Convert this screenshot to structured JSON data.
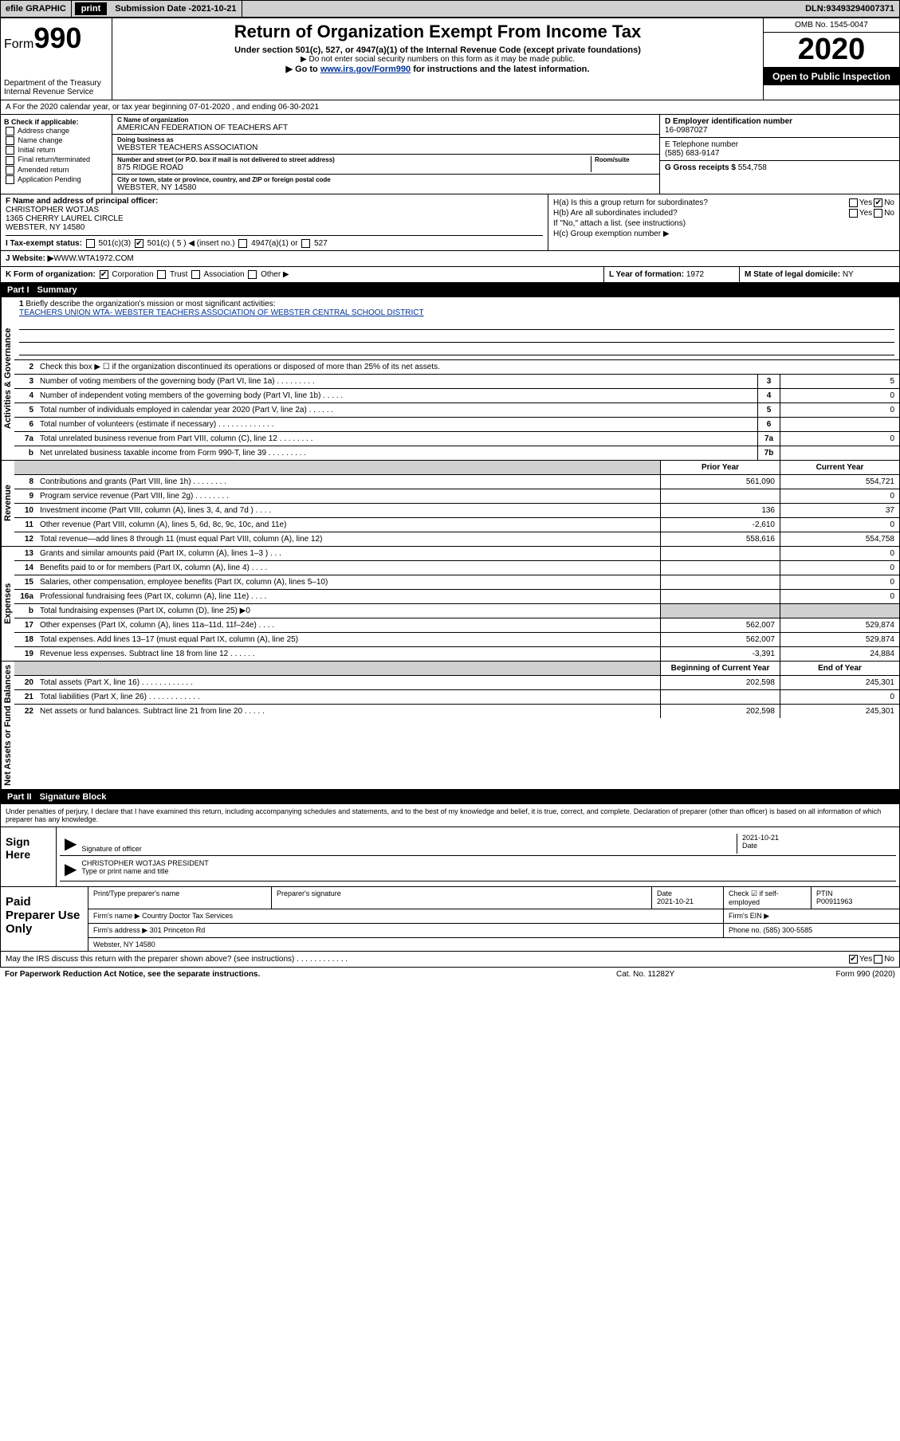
{
  "topbar": {
    "efile": "efile GRAPHIC",
    "print": "print",
    "sub_label": "Submission Date - ",
    "sub_date": "2021-10-21",
    "dln_label": "DLN: ",
    "dln": "93493294007371"
  },
  "header": {
    "form_word": "Form",
    "form_num": "990",
    "dept": "Department of the Treasury Internal Revenue Service",
    "title": "Return of Organization Exempt From Income Tax",
    "sub1": "Under section 501(c), 527, or 4947(a)(1) of the Internal Revenue Code (except private foundations)",
    "sub2": "▶ Do not enter social security numbers on this form as it may be made public.",
    "sub3_a": "▶ Go to ",
    "sub3_link": "www.irs.gov/Form990",
    "sub3_b": " for instructions and the latest information.",
    "omb": "OMB No. 1545-0047",
    "year": "2020",
    "open": "Open to Public Inspection"
  },
  "rowA": "A For the 2020 calendar year, or tax year beginning 07-01-2020    , and ending 06-30-2021",
  "boxB": {
    "title": "B Check if applicable:",
    "items": [
      "Address change",
      "Name change",
      "Initial return",
      "Final return/terminated",
      "Amended return",
      "Application Pending"
    ]
  },
  "boxC": {
    "name_lbl": "C Name of organization",
    "name": "AMERICAN FEDERATION OF TEACHERS AFT",
    "dba_lbl": "Doing business as",
    "dba": "WEBSTER TEACHERS ASSOCIATION",
    "addr_lbl": "Number and street (or P.O. box if mail is not delivered to street address)",
    "room_lbl": "Room/suite",
    "addr": "875 RIDGE ROAD",
    "city_lbl": "City or town, state or province, country, and ZIP or foreign postal code",
    "city": "WEBSTER, NY  14580"
  },
  "boxD": {
    "lbl": "D Employer identification number",
    "val": "16-0987027"
  },
  "boxE": {
    "lbl": "E Telephone number",
    "val": "(585) 683-9147"
  },
  "boxG": {
    "lbl": "G Gross receipts $ ",
    "val": "554,758"
  },
  "boxF": {
    "lbl": "F  Name and address of principal officer:",
    "l1": "CHRISTOPHER WOTJAS",
    "l2": "1365 CHERRY LAUREL CIRCLE",
    "l3": "WEBSTER, NY  14580"
  },
  "boxH": {
    "ha": "H(a)  Is this a group return for subordinates?",
    "hb": "H(b)  Are all subordinates included?",
    "hb_note": "If \"No,\" attach a list. (see instructions)",
    "hc": "H(c)  Group exemption number ▶",
    "yes": "Yes",
    "no": "No"
  },
  "rowI": {
    "lbl": "I    Tax-exempt status:",
    "o1": "501(c)(3)",
    "o2": "501(c) ( 5 ) ◀ (insert no.)",
    "o3": "4947(a)(1) or",
    "o4": "527"
  },
  "rowJ": {
    "lbl": "J   Website: ▶",
    "val": "  WWW.WTA1972.COM"
  },
  "rowK": {
    "lbl": "K Form of organization:",
    "o1": "Corporation",
    "o2": "Trust",
    "o3": "Association",
    "o4": "Other ▶"
  },
  "rowL": {
    "lbl": "L Year of formation: ",
    "val": "1972"
  },
  "rowM": {
    "lbl": "M State of legal domicile: ",
    "val": "NY"
  },
  "part1": {
    "title_pt": "Part I",
    "title": "Summary",
    "side_ag": "Activities & Governance",
    "side_rev": "Revenue",
    "side_exp": "Expenses",
    "side_na": "Net Assets or Fund Balances",
    "l1_lbl": "Briefly describe the organization's mission or most significant activities:",
    "l1_val": "TEACHERS UNION WTA- WEBSTER TEACHERS ASSOCIATION OF WEBSTER CENTRAL SCHOOL DISTRICT",
    "l2": "Check this box ▶ ☐  if the organization discontinued its operations or disposed of more than 25% of its net assets.",
    "lines": [
      {
        "n": "3",
        "d": "Number of voting members of the governing body (Part VI, line 1a)   .    .    .    .    .    .    .    .    .",
        "b": "3",
        "v": "5"
      },
      {
        "n": "4",
        "d": "Number of independent voting members of the governing body (Part VI, line 1b)   .    .    .    .    .",
        "b": "4",
        "v": "0"
      },
      {
        "n": "5",
        "d": "Total number of individuals employed in calendar year 2020 (Part V, line 2a)   .    .    .    .    .    .",
        "b": "5",
        "v": "0"
      },
      {
        "n": "6",
        "d": "Total number of volunteers (estimate if necessary)   .    .    .    .    .    .    .    .    .    .    .    .    .",
        "b": "6",
        "v": ""
      },
      {
        "n": "7a",
        "d": "Total unrelated business revenue from Part VIII, column (C), line 12   .    .    .    .    .    .    .    .",
        "b": "7a",
        "v": "0"
      },
      {
        "n": "b",
        "d": "Net unrelated business taxable income from Form 990-T, line 39   .    .    .    .    .    .    .    .    .",
        "b": "7b",
        "v": ""
      }
    ],
    "col_prior": "Prior Year",
    "col_curr": "Current Year",
    "rev": [
      {
        "n": "8",
        "d": "Contributions and grants (Part VIII, line 1h)   .    .    .    .    .    .    .    .",
        "p": "561,090",
        "c": "554,721"
      },
      {
        "n": "9",
        "d": "Program service revenue (Part VIII, line 2g)   .    .    .    .    .    .    .    .",
        "p": "",
        "c": "0"
      },
      {
        "n": "10",
        "d": "Investment income (Part VIII, column (A), lines 3, 4, and 7d )   .    .    .    .",
        "p": "136",
        "c": "37"
      },
      {
        "n": "11",
        "d": "Other revenue (Part VIII, column (A), lines 5, 6d, 8c, 9c, 10c, and 11e)",
        "p": "-2,610",
        "c": "0"
      },
      {
        "n": "12",
        "d": "Total revenue—add lines 8 through 11 (must equal Part VIII, column (A), line 12)",
        "p": "558,616",
        "c": "554,758"
      }
    ],
    "exp": [
      {
        "n": "13",
        "d": "Grants and similar amounts paid (Part IX, column (A), lines 1–3 )   .    .    .",
        "p": "",
        "c": "0"
      },
      {
        "n": "14",
        "d": "Benefits paid to or for members (Part IX, column (A), line 4)   .    .    .    .",
        "p": "",
        "c": "0"
      },
      {
        "n": "15",
        "d": "Salaries, other compensation, employee benefits (Part IX, column (A), lines 5–10)",
        "p": "",
        "c": "0"
      },
      {
        "n": "16a",
        "d": "Professional fundraising fees (Part IX, column (A), line 11e)   .    .    .    .",
        "p": "",
        "c": "0"
      },
      {
        "n": "b",
        "d": "Total fundraising expenses (Part IX, column (D), line 25) ▶0",
        "p": "grey",
        "c": "grey"
      },
      {
        "n": "17",
        "d": "Other expenses (Part IX, column (A), lines 11a–11d, 11f–24e)   .    .    .    .",
        "p": "562,007",
        "c": "529,874"
      },
      {
        "n": "18",
        "d": "Total expenses. Add lines 13–17 (must equal Part IX, column (A), line 25)",
        "p": "562,007",
        "c": "529,874"
      },
      {
        "n": "19",
        "d": "Revenue less expenses. Subtract line 18 from line 12   .    .    .    .    .    .",
        "p": "-3,391",
        "c": "24,884"
      }
    ],
    "col_beg": "Beginning of Current Year",
    "col_end": "End of Year",
    "na": [
      {
        "n": "20",
        "d": "Total assets (Part X, line 16)   .    .    .    .    .    .    .    .    .    .    .    .",
        "p": "202,598",
        "c": "245,301"
      },
      {
        "n": "21",
        "d": "Total liabilities (Part X, line 26)   .    .    .    .    .    .    .    .    .    .    .    .",
        "p": "",
        "c": "0"
      },
      {
        "n": "22",
        "d": "Net assets or fund balances. Subtract line 21 from line 20   .    .    .    .    .",
        "p": "202,598",
        "c": "245,301"
      }
    ]
  },
  "part2": {
    "title_pt": "Part II",
    "title": "Signature Block",
    "decl": "Under penalties of perjury, I declare that I have examined this return, including accompanying schedules and statements, and to the best of my knowledge and belief, it is true, correct, and complete. Declaration of preparer (other than officer) is based on all information of which preparer has any knowledge.",
    "sign_here": "Sign Here",
    "sig_officer": "Signature of officer",
    "sig_date_lbl": "Date",
    "sig_date": "2021-10-21",
    "sig_name": "CHRISTOPHER WOTJAS PRESIDENT",
    "sig_name_lbl": "Type or print name and title",
    "paid": "Paid Preparer Use Only",
    "pp_name_lbl": "Print/Type preparer's name",
    "pp_sig_lbl": "Preparer's signature",
    "pp_date_lbl": "Date",
    "pp_date": "2021-10-21",
    "pp_check_lbl": "Check ☑ if self-employed",
    "pp_ptin_lbl": "PTIN",
    "pp_ptin": "P00911963",
    "firm_name_lbl": "Firm's name    ▶ ",
    "firm_name": "Country Doctor Tax Services",
    "firm_ein_lbl": "Firm's EIN ▶",
    "firm_addr_lbl": "Firm's address ▶ ",
    "firm_addr1": "301 Princeton Rd",
    "firm_addr2": "Webster, NY  14580",
    "firm_phone_lbl": "Phone no. ",
    "firm_phone": "(585) 300-5585",
    "discuss": "May the IRS discuss this return with the preparer shown above? (see instructions)   .    .    .    .    .    .    .    .    .    .    .    .",
    "yes": "Yes",
    "no": "No"
  },
  "footer": {
    "left": "For Paperwork Reduction Act Notice, see the separate instructions.",
    "mid": "Cat. No. 11282Y",
    "right": "Form 990 (2020)"
  }
}
